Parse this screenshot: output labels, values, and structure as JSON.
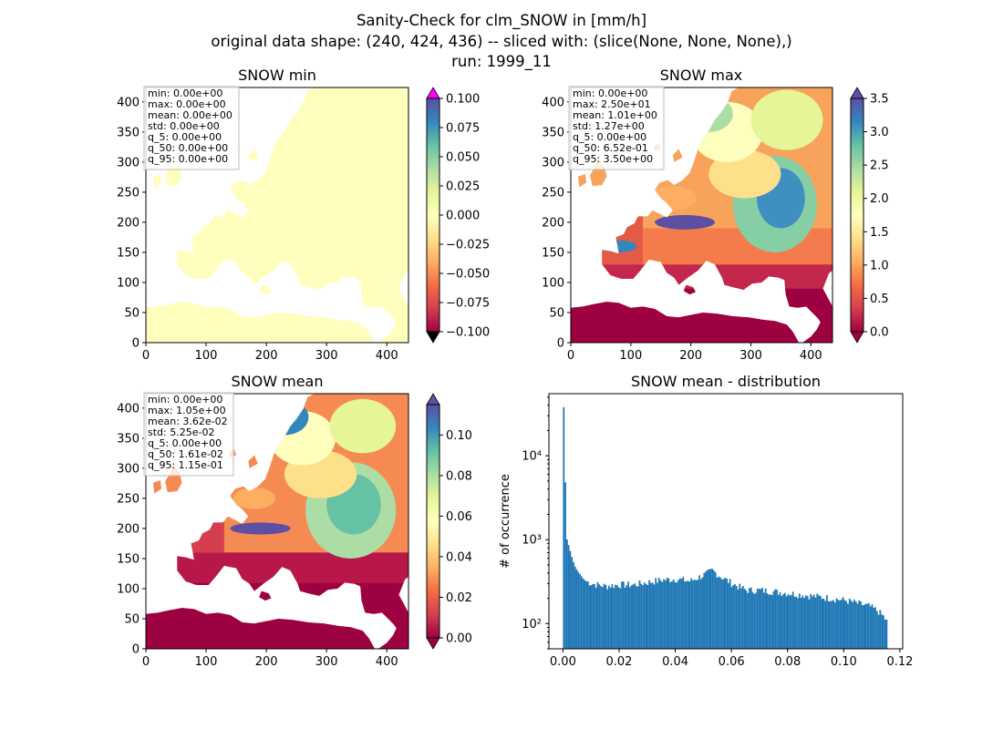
{
  "suptitle": [
    "Sanity-Check for clm_SNOW in [mm/h]",
    "original data shape: (240, 424, 436) -- sliced with: (slice(None, None, None),)",
    "run: 1999_11"
  ],
  "colors": {
    "land_min": "#fefebd",
    "ocean": "#ffffff",
    "histogram": "#1f77b4",
    "over_min": "#ff00ff",
    "under_min": "#000000",
    "over_max": "#5e4fa2",
    "under_max": "#9e0142"
  },
  "icons": {
    "over_arrow": "triangle-up",
    "under_arrow": "triangle-down"
  },
  "chart_data": [
    {
      "type": "heatmap",
      "title": "SNOW min",
      "xlim": [
        0,
        436
      ],
      "ylim": [
        0,
        424
      ],
      "xticks": [
        "0",
        "100",
        "200",
        "300",
        "400"
      ],
      "yticks": [
        "0",
        "50",
        "100",
        "150",
        "200",
        "250",
        "300",
        "350",
        "400"
      ],
      "colormap": "Spectral",
      "colorbar": {
        "ticks": [
          "0.100",
          "0.075",
          "0.050",
          "0.025",
          "0.000",
          "−0.025",
          "−0.050",
          "−0.075",
          "−0.100"
        ],
        "range": [
          -0.1,
          0.1
        ]
      },
      "stats": [
        "min: 0.00e+00",
        "max: 0.00e+00",
        "mean: 0.00e+00",
        "std: 0.00e+00",
        "q_5: 0.00e+00",
        "q_50: 0.00e+00",
        "q_95: 0.00e+00"
      ]
    },
    {
      "type": "heatmap",
      "title": "SNOW max",
      "xlim": [
        0,
        436
      ],
      "ylim": [
        0,
        424
      ],
      "xticks": [
        "0",
        "100",
        "200",
        "300",
        "400"
      ],
      "yticks": [
        "0",
        "50",
        "100",
        "150",
        "200",
        "250",
        "300",
        "350",
        "400"
      ],
      "colormap": "Spectral",
      "colorbar": {
        "ticks": [
          "3.5",
          "3.0",
          "2.5",
          "2.0",
          "1.5",
          "1.0",
          "0.5",
          "0.0"
        ],
        "range": [
          0,
          3.5
        ]
      },
      "stats": [
        "min: 0.00e+00",
        "max: 2.50e+01",
        "mean: 1.01e+00",
        "std: 1.27e+00",
        "q_5: 0.00e+00",
        "q_50: 6.52e-01",
        "q_95: 3.50e+00"
      ]
    },
    {
      "type": "heatmap",
      "title": "SNOW mean",
      "xlim": [
        0,
        436
      ],
      "ylim": [
        0,
        424
      ],
      "xticks": [
        "0",
        "100",
        "200",
        "300",
        "400"
      ],
      "yticks": [
        "0",
        "50",
        "100",
        "150",
        "200",
        "250",
        "300",
        "350",
        "400"
      ],
      "colormap": "Spectral",
      "colorbar": {
        "ticks": [
          "0.10",
          "0.08",
          "0.06",
          "0.04",
          "0.02",
          "0.00"
        ],
        "range": [
          0,
          0.115
        ]
      },
      "stats": [
        "min: 0.00e+00",
        "max: 1.05e+00",
        "mean: 3.62e-02",
        "std: 5.25e-02",
        "q_5: 0.00e+00",
        "q_50: 1.61e-02",
        "q_95: 1.15e-01"
      ]
    },
    {
      "type": "bar",
      "title": "SNOW mean - distribution",
      "ylabel": "# of occurrence",
      "yscale": "log",
      "xlim": [
        -0.005,
        0.121
      ],
      "ylim": [
        50,
        55000
      ],
      "xticks": [
        "0.00",
        "0.02",
        "0.04",
        "0.06",
        "0.08",
        "0.10",
        "0.12"
      ],
      "yticks": [
        "10²",
        "10³",
        "10⁴"
      ],
      "bin_width": 0.000575,
      "bin_start": 0.0,
      "x": [
        0.0,
        0.001,
        0.002,
        0.003,
        0.004,
        0.005,
        0.006,
        0.007,
        0.008,
        0.01,
        0.012,
        0.015,
        0.02,
        0.025,
        0.03,
        0.035,
        0.04,
        0.045,
        0.05,
        0.053,
        0.055,
        0.06,
        0.065,
        0.07,
        0.075,
        0.08,
        0.085,
        0.09,
        0.095,
        0.1,
        0.103,
        0.106,
        0.109,
        0.112,
        0.114,
        0.1155
      ],
      "y": [
        38000,
        1050,
        800,
        600,
        480,
        420,
        380,
        340,
        320,
        300,
        290,
        280,
        290,
        290,
        310,
        330,
        340,
        320,
        380,
        430,
        380,
        300,
        250,
        250,
        240,
        230,
        220,
        210,
        200,
        190,
        180,
        170,
        160,
        140,
        120,
        100
      ]
    }
  ]
}
